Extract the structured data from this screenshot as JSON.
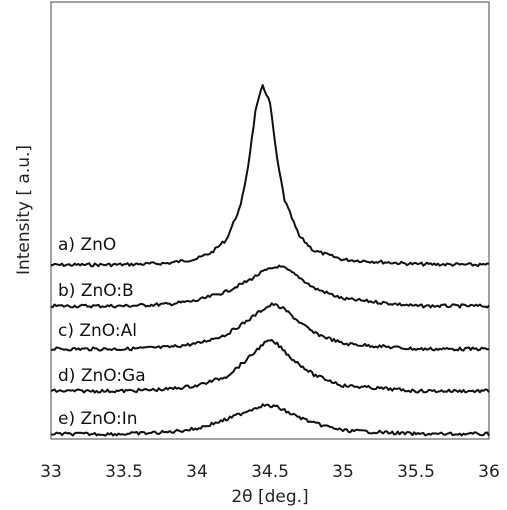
{
  "chart_data": {
    "type": "line",
    "xlabel": "2θ [deg.]",
    "ylabel": "Intensity [ a.u.]",
    "xlim": [
      33,
      36
    ],
    "x_ticks": [
      "33",
      "33.5",
      "34",
      "34.5",
      "35",
      "35.5",
      "36"
    ],
    "y_scale": "arbitrary units, curves vertically offset",
    "grid": false,
    "series": [
      {
        "name": "a) ZnO",
        "x": [
          33.0,
          33.5,
          33.8,
          34.0,
          34.1,
          34.2,
          34.3,
          34.35,
          34.4,
          34.45,
          34.5,
          34.55,
          34.6,
          34.7,
          34.8,
          35.0,
          35.5,
          36.0
        ],
        "y": [
          0.0,
          0.002,
          0.01,
          0.035,
          0.07,
          0.14,
          0.33,
          0.55,
          0.85,
          1.0,
          0.9,
          0.58,
          0.36,
          0.16,
          0.08,
          0.03,
          0.005,
          0.0
        ]
      },
      {
        "name": "b) ZnO:B",
        "x": [
          33.0,
          33.5,
          33.8,
          34.0,
          34.2,
          34.35,
          34.45,
          34.55,
          34.6,
          34.7,
          34.8,
          35.0,
          35.5,
          36.0
        ],
        "y": [
          0.0,
          0.0,
          0.01,
          0.03,
          0.08,
          0.14,
          0.19,
          0.22,
          0.21,
          0.16,
          0.1,
          0.04,
          0.0,
          0.0
        ]
      },
      {
        "name": "c) ZnO:Al",
        "x": [
          33.0,
          33.5,
          33.8,
          34.0,
          34.2,
          34.35,
          34.45,
          34.52,
          34.6,
          34.7,
          34.8,
          35.0,
          35.5,
          36.0
        ],
        "y": [
          0.0,
          0.0,
          0.01,
          0.03,
          0.08,
          0.16,
          0.22,
          0.25,
          0.22,
          0.15,
          0.09,
          0.03,
          0.0,
          0.0
        ]
      },
      {
        "name": "d) ZnO:Ga",
        "x": [
          33.0,
          33.5,
          33.8,
          34.0,
          34.2,
          34.35,
          34.45,
          34.5,
          34.55,
          34.65,
          34.8,
          35.0,
          35.5,
          36.0
        ],
        "y": [
          0.0,
          0.0,
          0.01,
          0.03,
          0.08,
          0.18,
          0.26,
          0.28,
          0.26,
          0.18,
          0.09,
          0.03,
          0.0,
          0.0
        ]
      },
      {
        "name": "e) ZnO:In",
        "x": [
          33.0,
          33.5,
          33.8,
          34.0,
          34.2,
          34.35,
          34.45,
          34.55,
          34.65,
          34.8,
          35.0,
          35.5,
          36.0
        ],
        "y": [
          0.0,
          0.0,
          0.01,
          0.03,
          0.08,
          0.13,
          0.16,
          0.15,
          0.11,
          0.06,
          0.02,
          0.0,
          0.0
        ]
      }
    ]
  }
}
